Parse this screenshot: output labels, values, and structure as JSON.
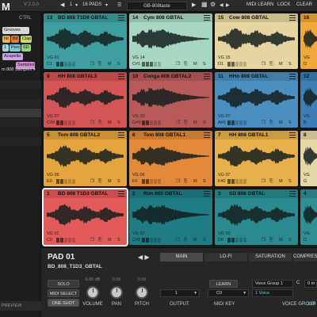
{
  "topbar": {
    "logo": "M",
    "version": "V 2.0.0",
    "page_num": "1",
    "pads_label": "16 PADS",
    "preset": "GB-808taste",
    "midi_learn": "MIDI LEARN",
    "lock": "LOCK",
    "clear": "CLEAR"
  },
  "browser": {
    "ctrl": "CTRL",
    "tags": [
      {
        "label": "Grooves",
        "color": "#d9d9d9"
      },
      {
        "label": "hit",
        "color": "#e0b35a"
      },
      {
        "label": "Bit",
        "color": "#e57b3a"
      },
      {
        "label": "Clap",
        "color": "#cfd96a"
      },
      {
        "label": "1",
        "color": "#9fd6e0"
      },
      {
        "label": "Perc",
        "color": "#7ac8d8"
      },
      {
        "label": "SD",
        "color": "#94d483"
      },
      {
        "label": "Acapella",
        "color": "#cfa6e6"
      },
      {
        "label": "Samples",
        "color": "#d58ed6"
      }
    ],
    "samples_dropdown": "m 808 Samples ▾",
    "preview": "PREVIEW"
  },
  "pads": [
    {
      "num": "13",
      "name": "BD 808 T1D9 GBTAL",
      "color": "#3f9ea0",
      "vg": "VG 01",
      "key": "C1",
      "vol": 0.3
    },
    {
      "num": "14",
      "name": "Cym 808 GBTAL",
      "color": "#a7d6c2",
      "vg": "VG 14",
      "key": "C#1",
      "vol": 0.5
    },
    {
      "num": "15",
      "name": "Cow 808 GBTAL",
      "color": "#e6d5a0",
      "vg": "VG 15",
      "key": "D1",
      "vol": 0.4
    },
    {
      "num": "16",
      "name": "",
      "color": "#f0a83a",
      "vg": "VG",
      "key": "D",
      "vol": 0.4
    },
    {
      "num": "9",
      "name": "HH 808 GBTAL3",
      "color": "#d45555",
      "vg": "VG 07",
      "key": "C#0",
      "vol": 0.3
    },
    {
      "num": "10",
      "name": "Conga 808 GBTAL2",
      "color": "#b85a5a",
      "vg": "VG 10",
      "key": "G#0",
      "vol": 0.3
    },
    {
      "num": "11",
      "name": "HHo 808 GBTAL",
      "color": "#4a8fbf",
      "vg": "VG 07",
      "key": "A#0",
      "vol": 0.3
    },
    {
      "num": "12",
      "name": "",
      "color": "#3c7eb5",
      "vg": "VG",
      "key": "B",
      "vol": 0.3
    },
    {
      "num": "5",
      "name": "Tom 808 GBTAL2",
      "color": "#e5a43d",
      "vg": "VG 05",
      "key": "E0",
      "vol": 0.3
    },
    {
      "num": "6",
      "name": "Tom 808 GBTAL1",
      "color": "#e38a3a",
      "vg": "VG 06",
      "key": "F0",
      "vol": 0.3
    },
    {
      "num": "7",
      "name": "HH 808 GBTAL1",
      "color": "#e8b04a",
      "vg": "VG 07",
      "key": "F#0",
      "vol": 0.3
    },
    {
      "num": "8",
      "name": "",
      "color": "#e6d8a6",
      "vg": "VG",
      "key": "G",
      "vol": 0.3
    },
    {
      "num": "1",
      "name": "BD 808 T1D3 GBTAL",
      "color": "#e35a5a",
      "vg": "VG 01",
      "key": "C0",
      "vol": 0.4
    },
    {
      "num": "2",
      "name": "Rim 808 GBTAL",
      "color": "#1f7c85",
      "vg": "VG 02",
      "key": "C#0",
      "vol": 0.3
    },
    {
      "num": "3",
      "name": "SD 808 GBTAL",
      "color": "#2a8a8f",
      "vg": "VG 03",
      "key": "D0",
      "vol": 0.3
    },
    {
      "num": "4",
      "name": "",
      "color": "#2f8f93",
      "vg": "VG",
      "key": "D",
      "vol": 0.3
    }
  ],
  "pad_controls": {
    "mute": "M",
    "solo": "S"
  },
  "panel": {
    "title": "PAD 01",
    "sample": "BD_808_T1D3_GBTAL",
    "tabs": [
      "MAIN",
      "LO-FI",
      "SATURATION",
      "COMPRESSOR"
    ],
    "solo": "SOLO",
    "midi_select": "MIDI SELECT",
    "one_shot": "ONE SHOT",
    "volume_value": "0.00 dB",
    "pan_value": "0.00",
    "pitch_value": "0.00",
    "volume_label": "VOLUME",
    "pan_label": "PAN",
    "pitch_label": "PITCH",
    "output_value": "1",
    "output_label": "OUTPUT",
    "learn": "LEARN",
    "midi_key_value": "C0",
    "midi_key_label": "MIDI KEY",
    "voice_group_value": "Voice Group 1",
    "voice_value": "1 Voice",
    "voice_group_label": "VOICE GROUP",
    "c_label": "C",
    "extra_value": "0 m",
    "extra_label": "VOI"
  }
}
